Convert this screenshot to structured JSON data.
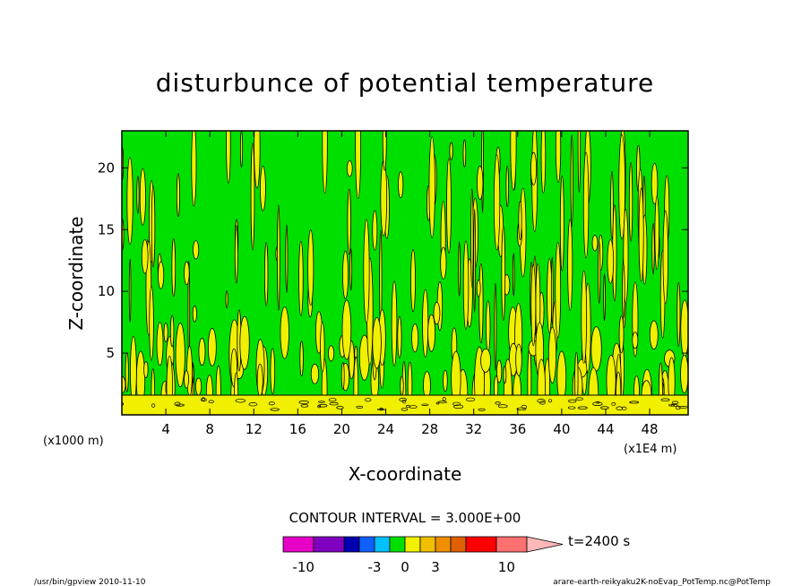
{
  "chart_data": {
    "type": "heatmap",
    "title": "disturbunce of potential temperature",
    "xlabel": "X-coordinate",
    "ylabel": "Z-coordinate",
    "x_scale_note": "(x1000 m)",
    "x_unit_note": "(x1E4 m)",
    "xlim": [
      0,
      51.5
    ],
    "ylim": [
      0,
      23
    ],
    "x_ticks": [
      4,
      8,
      12,
      16,
      20,
      24,
      28,
      32,
      36,
      40,
      44,
      48
    ],
    "y_ticks": [
      5,
      10,
      15,
      20
    ],
    "contour_interval": "CONTOUR INTERVAL = 3.000E+00",
    "time_label": "t=2400 s",
    "colorbar": {
      "tick_labels": [
        "-10",
        "-3",
        "0",
        "3",
        "10"
      ],
      "tick_values": [
        -10,
        -3,
        0,
        3,
        10
      ],
      "colors": [
        "#e600c8",
        "#8000c0",
        "#0000b0",
        "#1060ff",
        "#00c0ff",
        "#00e000",
        "#f0f000",
        "#f0c000",
        "#f09000",
        "#e06000",
        "#ff0000",
        "#ff7070",
        "#ffb8b8"
      ]
    },
    "fill_colors": {
      "positive_band": "#f0f000",
      "near_zero_band": "#00e000",
      "contour_line": "#000000"
    },
    "surface_layer_top_z": 1.6
  },
  "footer": {
    "left": "/usr/bin/gpview   2010-11-10",
    "right": "arare-earth-reikyaku2K-noEvap_PotTemp.nc@PotTemp"
  }
}
